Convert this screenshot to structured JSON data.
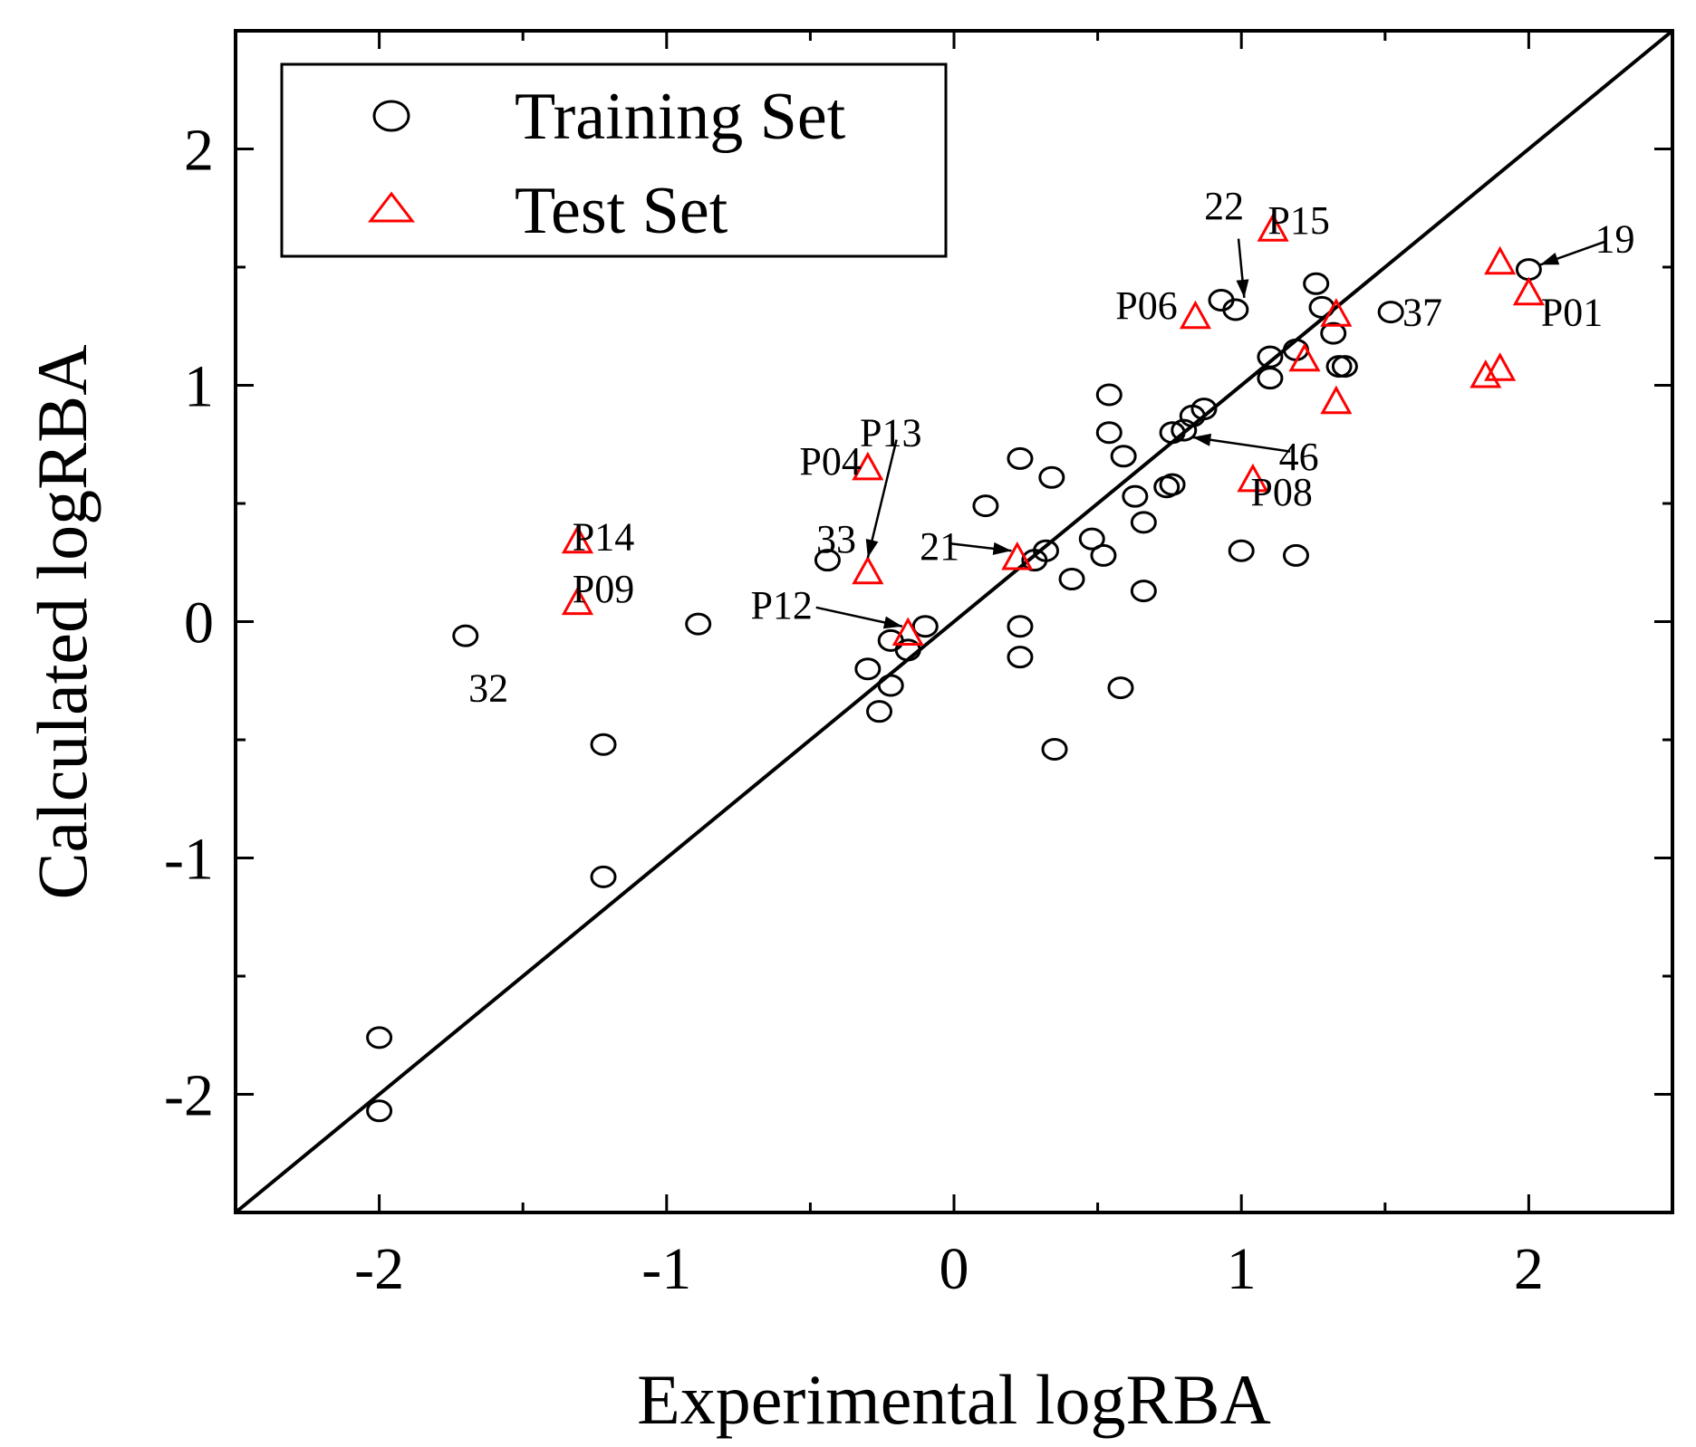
{
  "chart_data": {
    "type": "scatter",
    "title": "",
    "xlabel": "Experimental logRBA",
    "ylabel": "Calculated logRBA",
    "xlim": [
      -2.5,
      2.5
    ],
    "ylim": [
      -2.5,
      2.5
    ],
    "xticks": [
      -2,
      -1,
      0,
      1,
      2
    ],
    "yticks": [
      -2,
      -1,
      0,
      1,
      2
    ],
    "xtick_labels": [
      "-2",
      "-1",
      "0",
      "1",
      "2"
    ],
    "ytick_labels": [
      "-2",
      "-1",
      "0",
      "1",
      "2"
    ],
    "minor_step": 0.5,
    "grid": false,
    "legend_position": "top-left",
    "identity_line": {
      "from": [
        -2.5,
        -2.5
      ],
      "to": [
        2.5,
        2.5
      ],
      "color": "#000000"
    },
    "series": [
      {
        "name": "Training Set",
        "marker": "circle",
        "color": "#000000",
        "points": [
          {
            "x": -2.0,
            "y": -1.76
          },
          {
            "x": -2.0,
            "y": -2.07
          },
          {
            "x": -1.7,
            "y": -0.06
          },
          {
            "x": -1.22,
            "y": -0.52
          },
          {
            "x": -1.22,
            "y": -1.08
          },
          {
            "x": -0.89,
            "y": -0.01
          },
          {
            "x": -0.44,
            "y": 0.26
          },
          {
            "x": -0.3,
            "y": -0.2
          },
          {
            "x": -0.26,
            "y": -0.38
          },
          {
            "x": -0.22,
            "y": -0.27
          },
          {
            "x": -0.22,
            "y": -0.08
          },
          {
            "x": -0.16,
            "y": -0.12
          },
          {
            "x": -0.1,
            "y": -0.02
          },
          {
            "x": 0.11,
            "y": 0.49
          },
          {
            "x": 0.23,
            "y": 0.69
          },
          {
            "x": 0.23,
            "y": -0.02
          },
          {
            "x": 0.23,
            "y": -0.15
          },
          {
            "x": 0.28,
            "y": 0.26
          },
          {
            "x": 0.32,
            "y": 0.3
          },
          {
            "x": 0.34,
            "y": 0.61
          },
          {
            "x": 0.35,
            "y": -0.54
          },
          {
            "x": 0.41,
            "y": 0.18
          },
          {
            "x": 0.48,
            "y": 0.35
          },
          {
            "x": 0.52,
            "y": 0.28
          },
          {
            "x": 0.54,
            "y": 0.96
          },
          {
            "x": 0.54,
            "y": 0.8
          },
          {
            "x": 0.58,
            "y": -0.28
          },
          {
            "x": 0.59,
            "y": 0.7
          },
          {
            "x": 0.63,
            "y": 0.53
          },
          {
            "x": 0.66,
            "y": 0.42
          },
          {
            "x": 0.66,
            "y": 0.13
          },
          {
            "x": 0.74,
            "y": 0.57
          },
          {
            "x": 0.76,
            "y": 0.58
          },
          {
            "x": 0.76,
            "y": 0.8
          },
          {
            "x": 0.8,
            "y": 0.81
          },
          {
            "x": 0.83,
            "y": 0.87
          },
          {
            "x": 0.87,
            "y": 0.9
          },
          {
            "x": 0.93,
            "y": 1.36
          },
          {
            "x": 0.98,
            "y": 1.32
          },
          {
            "x": 1.0,
            "y": 0.3
          },
          {
            "x": 1.1,
            "y": 1.12
          },
          {
            "x": 1.1,
            "y": 1.03
          },
          {
            "x": 1.19,
            "y": 1.15
          },
          {
            "x": 1.19,
            "y": 0.28
          },
          {
            "x": 1.26,
            "y": 1.43
          },
          {
            "x": 1.28,
            "y": 1.33
          },
          {
            "x": 1.32,
            "y": 1.22
          },
          {
            "x": 1.34,
            "y": 1.08
          },
          {
            "x": 1.36,
            "y": 1.08
          },
          {
            "x": 1.52,
            "y": 1.31
          },
          {
            "x": 2.0,
            "y": 1.49
          }
        ]
      },
      {
        "name": "Test Set",
        "marker": "triangle",
        "color": "#ff0000",
        "points": [
          {
            "x": -1.31,
            "y": 0.34
          },
          {
            "x": -1.31,
            "y": 0.08
          },
          {
            "x": -0.3,
            "y": 0.65
          },
          {
            "x": -0.3,
            "y": 0.21
          },
          {
            "x": -0.16,
            "y": -0.05
          },
          {
            "x": 0.22,
            "y": 0.27
          },
          {
            "x": 0.84,
            "y": 1.29
          },
          {
            "x": 1.04,
            "y": 0.6
          },
          {
            "x": 1.11,
            "y": 1.66
          },
          {
            "x": 1.22,
            "y": 1.11
          },
          {
            "x": 1.33,
            "y": 1.3
          },
          {
            "x": 1.33,
            "y": 0.93
          },
          {
            "x": 1.85,
            "y": 1.04
          },
          {
            "x": 1.9,
            "y": 1.07
          },
          {
            "x": 1.9,
            "y": 1.52
          },
          {
            "x": 2.0,
            "y": 1.39
          }
        ]
      }
    ],
    "annotations": [
      {
        "text": "P14",
        "x": -1.22,
        "y": 0.36
      },
      {
        "text": "P09",
        "x": -1.22,
        "y": 0.14
      },
      {
        "text": "32",
        "x": -1.62,
        "y": -0.28
      },
      {
        "text": "P04",
        "x": -0.43,
        "y": 0.68
      },
      {
        "text": "P13",
        "x": -0.22,
        "y": 0.8
      },
      {
        "text": "33",
        "x": -0.41,
        "y": 0.35
      },
      {
        "text": "P12",
        "x": -0.6,
        "y": 0.07
      },
      {
        "text": "21",
        "x": -0.05,
        "y": 0.32
      },
      {
        "text": "P06",
        "x": 0.67,
        "y": 1.34
      },
      {
        "text": "22",
        "x": 0.94,
        "y": 1.76
      },
      {
        "text": "P15",
        "x": 1.2,
        "y": 1.7
      },
      {
        "text": "46",
        "x": 1.2,
        "y": 0.7
      },
      {
        "text": "P08",
        "x": 1.14,
        "y": 0.55
      },
      {
        "text": "37",
        "x": 1.63,
        "y": 1.31
      },
      {
        "text": "19",
        "x": 2.3,
        "y": 1.62
      },
      {
        "text": "P01",
        "x": 2.15,
        "y": 1.31
      }
    ],
    "arrows": [
      {
        "from": [
          -0.2,
          0.77
        ],
        "to": [
          -0.3,
          0.27
        ]
      },
      {
        "from": [
          -0.48,
          0.06
        ],
        "to": [
          -0.18,
          -0.02
        ]
      },
      {
        "from": [
          -0.01,
          0.33
        ],
        "to": [
          0.2,
          0.3
        ]
      },
      {
        "from": [
          0.99,
          1.62
        ],
        "to": [
          1.01,
          1.37
        ]
      },
      {
        "from": [
          1.17,
          0.72
        ],
        "to": [
          0.83,
          0.78
        ]
      },
      {
        "from": [
          2.27,
          1.61
        ],
        "to": [
          2.04,
          1.51
        ]
      }
    ]
  }
}
